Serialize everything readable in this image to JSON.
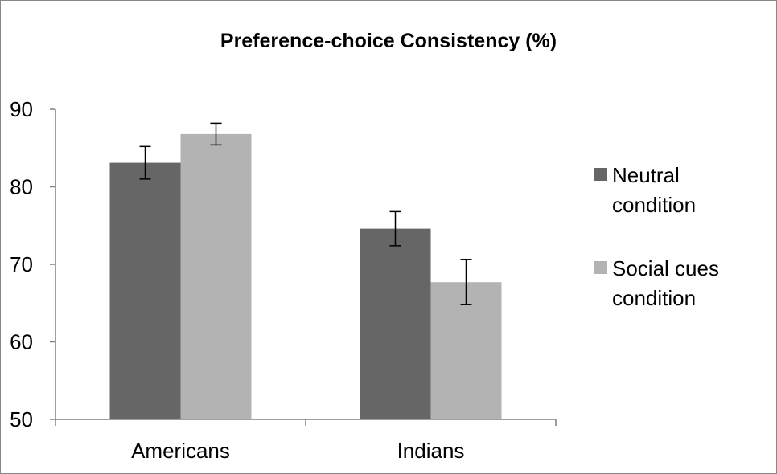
{
  "chart_data": {
    "type": "bar",
    "title": "Preference-choice Consistency (%)",
    "xlabel": "",
    "ylabel": "",
    "categories": [
      "Americans",
      "Indians"
    ],
    "ylim": [
      50,
      90
    ],
    "yticks": [
      50,
      60,
      70,
      80,
      90
    ],
    "grid": false,
    "legend_position": "right",
    "series": [
      {
        "name": "Neutral condition",
        "legend_lines": [
          "Neutral",
          "condition"
        ],
        "color": "#666666",
        "values": [
          83.1,
          74.6
        ],
        "error": [
          2.1,
          2.2
        ]
      },
      {
        "name": "Social cues condition",
        "legend_lines": [
          "Social cues",
          "condition"
        ],
        "color": "#b3b3b3",
        "values": [
          86.8,
          67.7
        ],
        "error": [
          1.4,
          2.9
        ]
      }
    ]
  }
}
